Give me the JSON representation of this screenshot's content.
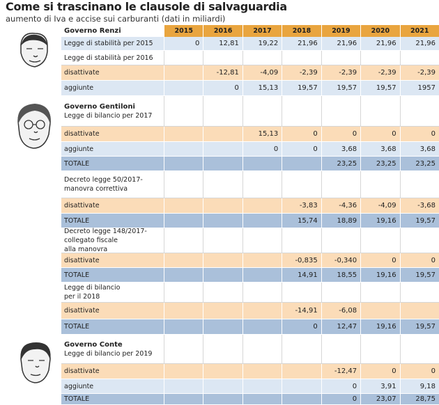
{
  "header": {
    "title": "Come si trascinano le clausole di salvaguardia",
    "subtitle": "aumento di Iva e accise sui carburanti (dati in miliardi)"
  },
  "table": {
    "heading": "Governo Renzi",
    "columns": [
      "2015",
      "2016",
      "2017",
      "2018",
      "2019",
      "2020",
      "2021"
    ],
    "rows": [
      {
        "label": [
          "Legge di stabilità per 2015"
        ],
        "color": "#dce7f3",
        "values": [
          "0",
          "12,81",
          "19,22",
          "21,96",
          "21,96",
          "21,96",
          "21,96"
        ]
      },
      {
        "label": [
          "Legge di stabilità per 2016"
        ],
        "color": "#ffffff"
      },
      {
        "label": [
          "disattivate"
        ],
        "color": "#fbdcb8",
        "values": [
          null,
          "-12,81",
          "-4,09",
          "-2,39",
          "-2,39",
          "-2,39",
          "-2,39"
        ]
      },
      {
        "label": [
          "aggiunte"
        ],
        "color": "#dce7f3",
        "values": [
          null,
          "0",
          "15,13",
          "19,57",
          "19,57",
          "19,57",
          "1957"
        ]
      },
      {
        "heading": "Governo Gentiloni",
        "label": [
          "Legge di bilancio per 2017"
        ],
        "color": "#ffffff"
      },
      {
        "label": [
          "disattivate"
        ],
        "color": "#fbdcb8",
        "values": [
          null,
          null,
          "15,13",
          "0",
          "0",
          "0",
          "0"
        ]
      },
      {
        "label": [
          "aggiunte"
        ],
        "color": "#dce7f3",
        "values": [
          null,
          null,
          "0",
          "0",
          "3,68",
          "3,68",
          "3,68"
        ]
      },
      {
        "label": [
          "TOTALE"
        ],
        "color": "#aac0da",
        "values": [
          null,
          null,
          null,
          null,
          "23,25",
          "23,25",
          "23,25"
        ]
      },
      {
        "label": [
          "Decreto legge 50/2017-",
          "manovra correttiva"
        ],
        "color": "#ffffff"
      },
      {
        "label": [
          "disattivate"
        ],
        "color": "#fbdcb8",
        "values": [
          null,
          null,
          null,
          "-3,83",
          "-4,36",
          "-4,09",
          "-3,68"
        ]
      },
      {
        "label": [
          "TOTALE"
        ],
        "color": "#aac0da",
        "values": [
          null,
          null,
          null,
          "15,74",
          "18,89",
          "19,16",
          "19,57"
        ]
      },
      {
        "label": [
          "Decreto legge 148/2017-",
          "collegato fiscale",
          "alla manovra"
        ],
        "color": "#ffffff"
      },
      {
        "label": [
          "disattivate"
        ],
        "color": "#fbdcb8",
        "values": [
          null,
          null,
          null,
          "-0,835",
          "-0,340",
          "0",
          "0"
        ]
      },
      {
        "label": [
          "TOTALE"
        ],
        "color": "#aac0da",
        "values": [
          null,
          null,
          null,
          "14,91",
          "18,55",
          "19,16",
          "19,57"
        ]
      },
      {
        "label": [
          "Legge di bilancio",
          "per il 2018"
        ],
        "color": "#ffffff"
      },
      {
        "label": [
          "disattivate"
        ],
        "color": "#fbdcb8",
        "values": [
          null,
          null,
          null,
          "-14,91",
          "-6,08",
          null,
          null
        ]
      },
      {
        "label": [
          "TOTALE"
        ],
        "color": "#aac0da",
        "values": [
          null,
          null,
          null,
          "0",
          "12,47",
          "19,16",
          "19,57"
        ]
      },
      {
        "heading": "Governo Conte",
        "label": [
          "Legge di bilancio per 2019"
        ],
        "color": "#ffffff"
      },
      {
        "label": [
          "disattivate"
        ],
        "color": "#fbdcb8",
        "values": [
          null,
          null,
          null,
          null,
          "-12,47",
          "0",
          "0"
        ]
      },
      {
        "label": [
          "aggiunte"
        ],
        "color": "#dce7f3",
        "values": [
          null,
          null,
          null,
          null,
          "0",
          "3,91",
          "9,18"
        ]
      },
      {
        "label": [
          "TOTALE"
        ],
        "color": "#aac0da",
        "values": [
          null,
          null,
          null,
          null,
          "0",
          "23,07",
          "28,75"
        ]
      }
    ]
  }
}
